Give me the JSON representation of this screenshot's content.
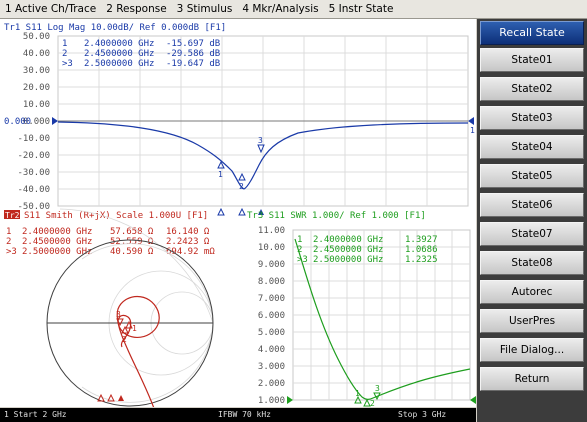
{
  "menubar": [
    "1 Active Ch/Trace",
    "2 Response",
    "3 Stimulus",
    "4 Mkr/Analysis",
    "5 Instr State"
  ],
  "trace1": {
    "header": "Tr1 S11 Log Mag 10.00dB/ Ref 0.000dB [F1]",
    "ref_label": "0.000",
    "y_ticks": [
      "50.00",
      "40.00",
      "30.00",
      "20.00",
      "10.00",
      "0.000",
      "-10.00",
      "-20.00",
      "-30.00",
      "-40.00",
      "-50.00"
    ],
    "markers": [
      {
        "num": "1",
        "freq": "2.4000000 GHz",
        "value": "-15.697 dB"
      },
      {
        "num": "2",
        "freq": "2.4500000 GHz",
        "value": "-29.586 dB"
      },
      {
        "num": ">3",
        "freq": "2.5000000 GHz",
        "value": "-19.647 dB"
      }
    ]
  },
  "trace2": {
    "badge": "Tr2",
    "header": "S11 Smith (R+jX) Scale 1.000U [F1]",
    "markers": [
      {
        "num": "1",
        "freq": "2.4000000 GHz",
        "r": "57.658 Ω",
        "x": "16.140 Ω"
      },
      {
        "num": "2",
        "freq": "2.4500000 GHz",
        "r": "52.559 Ω",
        "x": "2.2423 Ω"
      },
      {
        "num": ">3",
        "freq": "2.5000000 GHz",
        "r": "40.590 Ω",
        "x": "694.92 mΩ"
      }
    ]
  },
  "trace3": {
    "header": "Tr3 S11 SWR 1.000/ Ref 1.000 [F1]",
    "y_ticks": [
      "11.00",
      "10.00",
      "9.000",
      "8.000",
      "7.000",
      "6.000",
      "5.000",
      "4.000",
      "3.000",
      "2.000",
      "1.000"
    ],
    "markers": [
      {
        "num": "1",
        "freq": "2.4000000 GHz",
        "value": "1.3927"
      },
      {
        "num": "2",
        "freq": "2.4500000 GHz",
        "value": "1.0686"
      },
      {
        "num": ">3",
        "freq": "2.5000000 GHz",
        "value": "1.2325"
      }
    ]
  },
  "softkeys": {
    "title": "Recall State",
    "items": [
      "State01",
      "State02",
      "State03",
      "State04",
      "State05",
      "State06",
      "State07",
      "State08",
      "Autorec",
      "UserPres",
      "File Dialog...",
      "Return"
    ]
  },
  "statusbar": {
    "left": "1 Start 2 GHz",
    "center": "IFBW 70 kHz",
    "right": "Stop 3 GHz"
  },
  "colors": {
    "trace1": "#1a3aa8",
    "trace2": "#c0281e",
    "trace3": "#1e9e1e",
    "softkey_title": "#1e4fa0"
  }
}
